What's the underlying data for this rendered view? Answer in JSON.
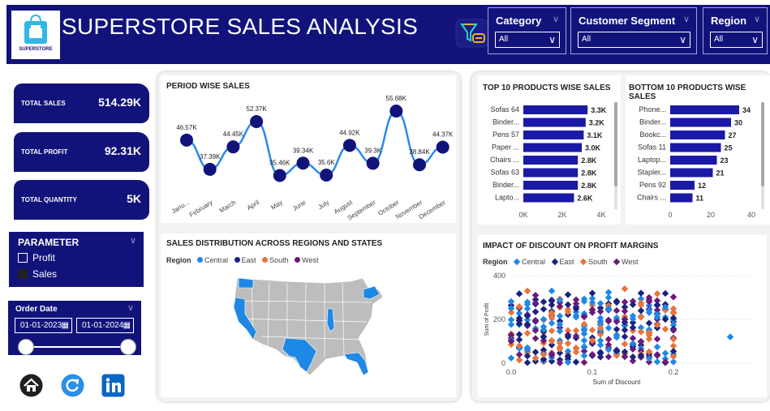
{
  "header": {
    "brand_text": "SUPERSTORE",
    "title": "SUPERSTORE SALES ANALYSIS",
    "filters": [
      {
        "label": "Category",
        "value": "All"
      },
      {
        "label": "Customer Segment",
        "value": "All"
      },
      {
        "label": "Region",
        "value": "All"
      }
    ]
  },
  "kpis": [
    {
      "label": "TOTAL SALES",
      "value": "514.29K"
    },
    {
      "label": "TOTAL PROFIT",
      "value": "92.31K"
    },
    {
      "label": "TOTAL QUANTITY",
      "value": "5K"
    }
  ],
  "parameter": {
    "title": "PARAMETER",
    "options": [
      {
        "label": "Profit",
        "selected": false
      },
      {
        "label": "Sales",
        "selected": true
      }
    ]
  },
  "order_date": {
    "title": "Order Date",
    "from": "01-01-2023",
    "to": "01-01-2024"
  },
  "icons": [
    "home-icon",
    "refresh-icon",
    "linkedin-icon"
  ],
  "colors": {
    "navy": "#12137a",
    "bar": "#1a1aa6",
    "line": "#2a8bea",
    "central": "#1e88e5",
    "east": "#1a237e",
    "south": "#e8743b",
    "west": "#6a1b7a"
  },
  "period_chart": {
    "title": "PERIOD WISE SALES",
    "months": [
      "Janu...",
      "February",
      "March",
      "April",
      "May",
      "June",
      "July",
      "August",
      "September",
      "October",
      "November",
      "December"
    ],
    "labels": [
      "46.57K",
      "37.39K",
      "44.45K",
      "52.37K",
      "35.46K",
      "39.34K",
      "35.6K",
      "44.92K",
      "39.3K",
      "55.68K",
      "38.84K",
      "44.37K"
    ]
  },
  "map": {
    "title": "SALES DISTRIBUTION ACROSS REGIONS AND STATES",
    "legend_title": "Region",
    "regions": [
      "Central",
      "East",
      "South",
      "West"
    ]
  },
  "top10": {
    "title": "TOP 10 PRODUCTS WISE SALES",
    "axis": [
      "0K",
      "2K",
      "4K"
    ]
  },
  "bottom10": {
    "title": "BOTTOM 10 PRODUCTS WISE SALES",
    "axis": [
      "0",
      "20",
      "40"
    ]
  },
  "scatter": {
    "title": "IMPACT OF DISCOUNT ON PROFIT MARGINS",
    "legend_title": "Region",
    "regions": [
      "Central",
      "East",
      "South",
      "West"
    ],
    "xlabel": "Sum of Discount",
    "ylabel": "Sum of Profit",
    "xticks": [
      "0.0",
      "0.1",
      "0.2"
    ],
    "yticks": [
      "400",
      "200",
      "0"
    ]
  },
  "chart_data": [
    {
      "type": "line",
      "title": "PERIOD WISE SALES",
      "categories": [
        "January",
        "February",
        "March",
        "April",
        "May",
        "June",
        "July",
        "August",
        "September",
        "October",
        "November",
        "December"
      ],
      "values": [
        46.57,
        37.39,
        44.45,
        52.37,
        35.46,
        39.34,
        35.6,
        44.92,
        39.3,
        55.68,
        38.84,
        44.37
      ],
      "unit": "K"
    },
    {
      "type": "bar",
      "title": "TOP 10 PRODUCTS WISE SALES",
      "categories": [
        "Sofas 64",
        "Binder...",
        "Pens 57",
        "Paper ...",
        "Chairs ...",
        "Sofas 63",
        "Binder...",
        "Lapto..."
      ],
      "values": [
        3.3,
        3.2,
        3.1,
        3.0,
        2.8,
        2.8,
        2.8,
        2.6
      ],
      "data_labels": [
        "3.3K",
        "3.2K",
        "3.1K",
        "3.0K",
        "2.8K",
        "2.8K",
        "2.8K",
        "2.6K"
      ],
      "xlim": [
        0,
        4
      ]
    },
    {
      "type": "bar",
      "title": "BOTTOM 10 PRODUCTS WISE SALES",
      "categories": [
        "Phone...",
        "Binder...",
        "Bookc...",
        "Sofas 11",
        "Laptop...",
        "Stapler...",
        "Pens 92",
        "Chairs ..."
      ],
      "values": [
        34,
        30,
        27,
        25,
        23,
        21,
        12,
        11
      ],
      "xlim": [
        0,
        40
      ]
    },
    {
      "type": "scatter",
      "title": "IMPACT OF DISCOUNT ON PROFIT MARGINS",
      "xlabel": "Sum of Discount",
      "ylabel": "Sum of Profit",
      "xlim": [
        0,
        0.3
      ],
      "ylim": [
        0,
        400
      ],
      "series": [
        {
          "name": "Central",
          "x": [
            0.0,
            0.02,
            0.05,
            0.09,
            0.12,
            0.15,
            0.18,
            0.27
          ],
          "y": [
            250,
            60,
            330,
            150,
            300,
            90,
            210,
            120
          ]
        },
        {
          "name": "East",
          "x": [
            0.01,
            0.04,
            0.07,
            0.1,
            0.13,
            0.16,
            0.19
          ],
          "y": [
            180,
            280,
            120,
            320,
            60,
            240,
            200
          ]
        },
        {
          "name": "South",
          "x": [
            0.02,
            0.05,
            0.08,
            0.11,
            0.14,
            0.17,
            0.2
          ],
          "y": [
            330,
            230,
            70,
            160,
            340,
            110,
            30
          ]
        },
        {
          "name": "West",
          "x": [
            0.0,
            0.03,
            0.06,
            0.1,
            0.13,
            0.17,
            0.2
          ],
          "y": [
            100,
            310,
            260,
            40,
            190,
            300,
            150
          ]
        }
      ]
    }
  ]
}
